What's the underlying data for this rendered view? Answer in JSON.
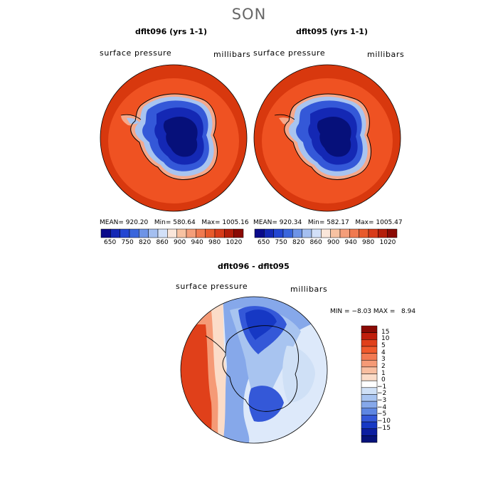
{
  "season_title": "SON",
  "panels": [
    {
      "title": "dflt096 (yrs 1-1)",
      "variable_label": "surface pressure",
      "units_label": "millibars",
      "stats": {
        "mean_label": "MEAN=",
        "mean": "920.20",
        "min_label": "Min=",
        "min": "580.64",
        "max_label": "Max=",
        "max": "1005.16"
      }
    },
    {
      "title": "dflt095 (yrs 1-1)",
      "variable_label": "surface pressure",
      "units_label": "millibars",
      "stats": {
        "mean_label": "MEAN=",
        "mean": "920.34",
        "min_label": "Min=",
        "min": "582.17",
        "max_label": "Max=",
        "max": "1005.47"
      }
    }
  ],
  "colorbar_horizontal": {
    "tick_labels": [
      "650",
      "750",
      "820",
      "860",
      "900",
      "940",
      "980",
      "1020"
    ],
    "colors": [
      "#0a0a8a",
      "#1428b4",
      "#2346d2",
      "#3a66dc",
      "#6e94e6",
      "#a4bff0",
      "#d2e0f8",
      "#fae6da",
      "#f7c2a2",
      "#f49e7a",
      "#f07a50",
      "#e85a2c",
      "#d83c1a",
      "#b41e0a",
      "#8a0a04"
    ]
  },
  "difference_panel": {
    "title": "dflt096 - dflt095",
    "variable_label": "surface pressure",
    "units_label": "millibars",
    "min_label": "MIN =",
    "min": "−8.03",
    "max_label": "MAX =",
    "max": "8.94",
    "colorbar_vertical": {
      "tick_labels": [
        "15",
        "10",
        "5",
        "4",
        "3",
        "2",
        "1",
        "0",
        "−1",
        "−2",
        "−3",
        "−4",
        "−5",
        "−10",
        "−15"
      ],
      "colors": [
        "#8a0a04",
        "#c01e0c",
        "#e0401a",
        "#f05a2c",
        "#f27a52",
        "#f59a76",
        "#f8bea0",
        "#fbdcc8",
        "#ffffff",
        "#cfe0f6",
        "#a8c4f0",
        "#86a8ea",
        "#5e86e2",
        "#3458d8",
        "#1638c4",
        "#0c1ea0",
        "#06127a"
      ]
    }
  },
  "map_colors": {
    "ocean_outer": "#d8380e",
    "ocean_inner": "#ef5222",
    "coast_band": "#f6a88a",
    "ice_edge": "#a8c4f0",
    "ice_mid": "#3458d8",
    "ice_high": "#1428b4",
    "ice_core": "#06107a",
    "diff_base": "#dde9fa",
    "diff_warm": "#e0401a",
    "diff_cool": "#3458d8"
  }
}
